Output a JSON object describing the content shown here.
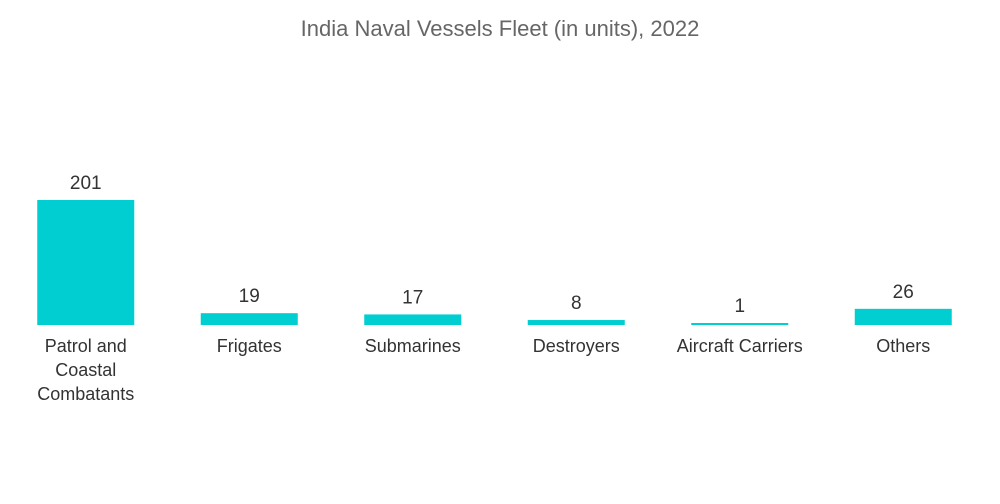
{
  "chart_data": {
    "type": "bar",
    "title": "India Naval Vessels Fleet (in units), 2022",
    "categories": [
      [
        "Patrol and",
        "Coastal",
        "Combatants"
      ],
      [
        "Frigates"
      ],
      [
        "Submarines"
      ],
      [
        "Destroyers"
      ],
      [
        "Aircraft Carriers"
      ],
      [
        "Others"
      ]
    ],
    "values": [
      201,
      19,
      17,
      8,
      1,
      26
    ],
    "value_labels": [
      "201",
      "19",
      "17",
      "8",
      "1",
      "26"
    ],
    "xlabel": "",
    "ylabel": "",
    "ylim": [
      0,
      201
    ],
    "grid": false,
    "legend": "none",
    "colors": {
      "bar": "#00CED1",
      "value_label": "#333333",
      "category_label": "#333333"
    }
  }
}
